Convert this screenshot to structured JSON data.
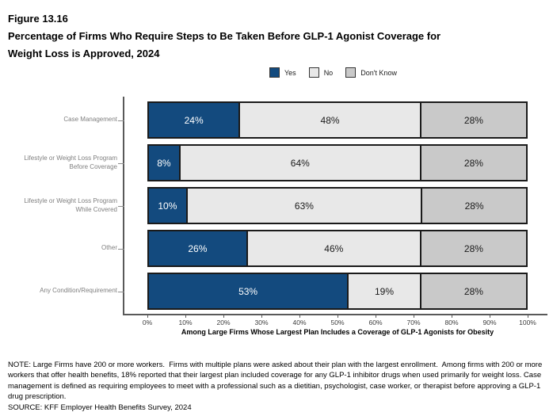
{
  "figure_label": "Figure 13.16",
  "title_lines": [
    "Percentage of Firms Who Require Steps to Be Taken Before GLP-1 Agonist Coverage for",
    "Weight Loss is Approved, 2024"
  ],
  "colors": {
    "yes_blue": "#134A7E",
    "no_light_gray": "#E8E8E8",
    "dont_know_gray": "#C9C9C9",
    "segment_border": "#1A1A1A",
    "axis_gray": "#595959",
    "category_label_gray": "#7F7F7F"
  },
  "chart_data": {
    "type": "bar",
    "orientation": "horizontal",
    "stacked": true,
    "grid": false,
    "legend_position": "top",
    "categories": [
      "Case Management",
      "Lifestyle or Weight Loss Program\nBefore Coverage",
      "Lifestyle or Weight Loss Program\nWhile Covered",
      "Other",
      "Any Condition/Requirement"
    ],
    "series": [
      {
        "name": "Yes",
        "color": "#134A7E",
        "values": [
          24,
          8,
          10,
          26,
          53
        ]
      },
      {
        "name": "No",
        "color": "#E8E8E8",
        "values": [
          48,
          64,
          63,
          46,
          19
        ]
      },
      {
        "name": "Don't Know",
        "color": "#C9C9C9",
        "values": [
          28,
          28,
          28,
          28,
          28
        ]
      }
    ],
    "value_suffix": "%",
    "xlim": [
      0,
      100
    ],
    "x_ticks": [
      "0%",
      "10%",
      "20%",
      "30%",
      "40%",
      "50%",
      "60%",
      "70%",
      "80%",
      "90%",
      "100%"
    ],
    "xlabel": "Among Large Firms Whose Largest Plan Includes a Coverage of GLP-1 Agonists for Obesity"
  },
  "note": "NOTE: Large Firms have 200 or more workers.  Firms with multiple plans were asked about their plan with the largest enrollment.  Among firms with 200 or more workers that offer health benefits, 18% reported that their largest plan included coverage for any GLP-1 inhibitor drugs when used primarily for weight loss. Case management is defined as requiring employees to meet with a professional such as a dietitian, psychologist, case worker, or therapist before approving a GLP-1 drug prescription.",
  "source": "SOURCE: KFF Employer Health Benefits Survey, 2024"
}
